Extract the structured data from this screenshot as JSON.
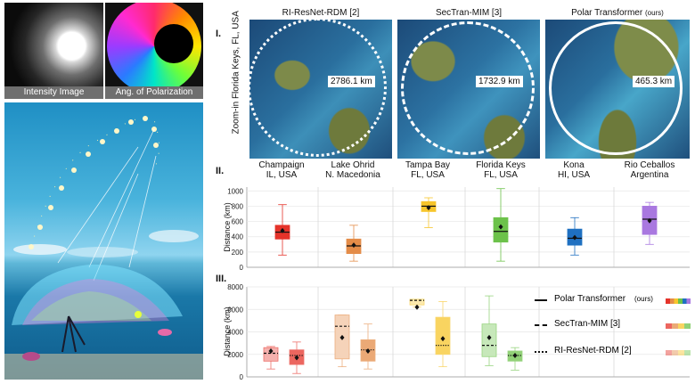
{
  "left": {
    "top_captions": [
      "Intensity Image",
      "Ang. of Polarization"
    ]
  },
  "maps": {
    "row_label": "I.",
    "side_label": "Zoom-in  Florida Keys, FL, USA",
    "panels": [
      {
        "title": "RI-ResNet-RDM [2]",
        "suffix": "",
        "distance": "2786.1 km",
        "circle": "dotted"
      },
      {
        "title": "SecTran-MIM [3]",
        "suffix": "",
        "distance": "1732.9 km",
        "circle": "dashed"
      },
      {
        "title": "Polar Transformer",
        "suffix": "(ours)",
        "distance": "465.3 km",
        "circle": "solid"
      }
    ]
  },
  "locations": {
    "row_label": "II.",
    "items": [
      {
        "name": "Champaign",
        "region": "IL, USA"
      },
      {
        "name": "Lake Ohrid",
        "region": "N. Macedonia"
      },
      {
        "name": "Tampa Bay",
        "region": "FL, USA"
      },
      {
        "name": "Florida Keys",
        "region": "FL, USA"
      },
      {
        "name": "Kona",
        "region": "HI, USA"
      },
      {
        "name": "Rio Ceballos",
        "region": "Argentina"
      }
    ]
  },
  "chart_data": [
    {
      "type": "box",
      "panel": "II.",
      "ylabel": "Distance (km)",
      "ylim": [
        0,
        1050
      ],
      "yticks": [
        0,
        200,
        400,
        600,
        800,
        1000
      ],
      "categories": [
        "Champaign",
        "Lake Ohrid",
        "Tampa Bay",
        "Florida Keys",
        "Kona",
        "Rio Ceballos"
      ],
      "colors": [
        "#e5332a",
        "#e48c48",
        "#f7c52b",
        "#6cc24a",
        "#1f70c1",
        "#a978e0"
      ],
      "boxes": [
        {
          "min": 160,
          "q1": 370,
          "median": 460,
          "q3": 550,
          "max": 820,
          "mean": 480
        },
        {
          "min": 80,
          "q1": 180,
          "median": 280,
          "q3": 370,
          "max": 550,
          "mean": 290
        },
        {
          "min": 520,
          "q1": 730,
          "median": 800,
          "q3": 860,
          "max": 910,
          "mean": 780
        },
        {
          "min": 80,
          "q1": 330,
          "median": 470,
          "q3": 650,
          "max": 1030,
          "mean": 530
        },
        {
          "min": 160,
          "q1": 290,
          "median": 380,
          "q3": 500,
          "max": 650,
          "mean": 390
        },
        {
          "min": 300,
          "q1": 430,
          "median": 630,
          "q3": 800,
          "max": 850,
          "mean": 610
        }
      ]
    },
    {
      "type": "box",
      "panel": "III.",
      "ylabel": "Distance (km)",
      "ylim": [
        0,
        8000
      ],
      "yticks": [
        0,
        2000,
        4000,
        6000,
        8000
      ],
      "groups": [
        "Champaign",
        "Lake Ohrid",
        "Tampa Bay",
        "Florida Keys"
      ],
      "series": [
        {
          "name": "SecTran-MIM [3]",
          "style": "dashed",
          "boxes": [
            {
              "min": 700,
              "q1": 1400,
              "median": 2100,
              "q3": 2600,
              "max": 2700,
              "mean": 2300
            },
            {
              "min": 900,
              "q1": 1600,
              "median": 4500,
              "q3": 5500,
              "max": 5500,
              "mean": 3500
            },
            {
              "min": 6200,
              "q1": 6400,
              "median": 6800,
              "q3": 6900,
              "max": 6900,
              "mean": 6200
            },
            {
              "min": 1000,
              "q1": 1800,
              "median": 2800,
              "q3": 4700,
              "max": 7200,
              "mean": 3500
            }
          ]
        },
        {
          "name": "RI-ResNet-RDM [2]",
          "style": "dotted",
          "boxes": [
            {
              "min": 300,
              "q1": 1100,
              "median": 1900,
              "q3": 2400,
              "max": 3100,
              "mean": 1700
            },
            {
              "min": 700,
              "q1": 1400,
              "median": 2400,
              "q3": 3300,
              "max": 4700,
              "mean": 2300
            },
            {
              "min": 900,
              "q1": 2000,
              "median": 2800,
              "q3": 5300,
              "max": 6700,
              "mean": 3400
            },
            {
              "min": 600,
              "q1": 1400,
              "median": 1900,
              "q3": 2300,
              "max": 2600,
              "mean": 1900
            }
          ]
        }
      ]
    }
  ],
  "legend": {
    "row_label": "III.",
    "items": [
      {
        "label": "Polar Transformer",
        "suffix": "(ours)",
        "style": "solid"
      },
      {
        "label": "SecTran-MIM [3]",
        "suffix": "",
        "style": "dashed"
      },
      {
        "label": "RI-ResNet-RDM [2]",
        "suffix": "",
        "style": "dotted"
      }
    ]
  }
}
